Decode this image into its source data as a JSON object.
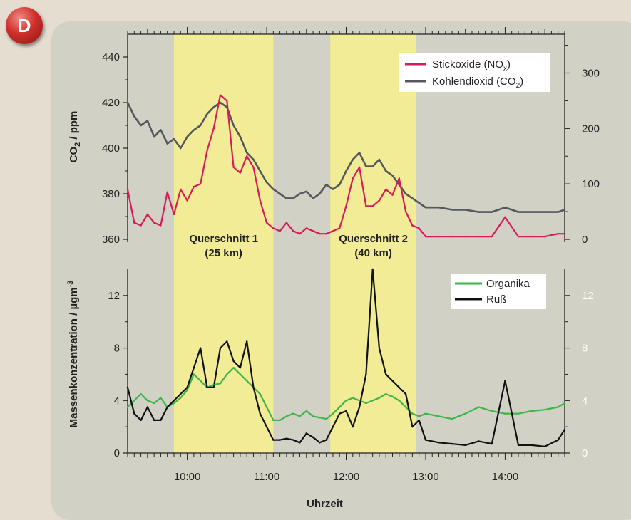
{
  "badge": {
    "letter": "D"
  },
  "chart_data": [
    {
      "type": "line",
      "xlabel": "",
      "ylabel": "CO2 / ppm",
      "ylim": [
        360,
        450
      ],
      "y2lim": [
        0,
        370
      ],
      "x_range": [
        "09:15",
        "14:45"
      ],
      "yticks": [
        360,
        380,
        400,
        420,
        440
      ],
      "y2ticks": [
        0,
        100,
        200,
        300
      ],
      "highlight_bands": [
        {
          "label": "Querschnitt 1",
          "sublabel": "(25 km)",
          "from": "09:50",
          "to": "11:05"
        },
        {
          "label": "Querschnitt 2",
          "sublabel": "(40 km)",
          "from": "11:48",
          "to": "12:53"
        }
      ],
      "legend_position": "top-right",
      "series": [
        {
          "name": "Stickoxide (NOx)",
          "legend_main": "Stickoxide (NO",
          "legend_sub": "x",
          "legend_end": ")",
          "color": "#d81b5c",
          "axis": "right",
          "x": [
            "09:15",
            "09:20",
            "09:25",
            "09:30",
            "09:35",
            "09:40",
            "09:45",
            "09:50",
            "09:55",
            "10:00",
            "10:05",
            "10:10",
            "10:15",
            "10:20",
            "10:25",
            "10:30",
            "10:35",
            "10:40",
            "10:45",
            "10:50",
            "10:55",
            "11:00",
            "11:05",
            "11:10",
            "11:15",
            "11:20",
            "11:25",
            "11:30",
            "11:35",
            "11:40",
            "11:45",
            "11:50",
            "11:55",
            "12:00",
            "12:05",
            "12:10",
            "12:15",
            "12:20",
            "12:25",
            "12:30",
            "12:35",
            "12:40",
            "12:45",
            "12:50",
            "12:55",
            "13:00",
            "13:10",
            "13:20",
            "13:30",
            "13:40",
            "13:50",
            "14:00",
            "14:10",
            "14:20",
            "14:30",
            "14:40",
            "14:45"
          ],
          "values": [
            90,
            30,
            25,
            45,
            30,
            25,
            85,
            45,
            90,
            70,
            95,
            100,
            160,
            200,
            260,
            250,
            130,
            120,
            150,
            130,
            70,
            30,
            20,
            15,
            30,
            15,
            10,
            20,
            15,
            10,
            10,
            15,
            20,
            60,
            110,
            130,
            60,
            60,
            70,
            90,
            80,
            110,
            50,
            25,
            20,
            5,
            5,
            5,
            5,
            5,
            5,
            40,
            5,
            5,
            5,
            10,
            10
          ]
        },
        {
          "name": "Kohlendioxid (CO2)",
          "legend_main": "Kohlendioxid (CO",
          "legend_sub": "2",
          "legend_end": ")",
          "color": "#55585c",
          "axis": "left",
          "x": [
            "09:15",
            "09:20",
            "09:25",
            "09:30",
            "09:35",
            "09:40",
            "09:45",
            "09:50",
            "09:55",
            "10:00",
            "10:05",
            "10:10",
            "10:15",
            "10:20",
            "10:25",
            "10:30",
            "10:35",
            "10:40",
            "10:45",
            "10:50",
            "10:55",
            "11:00",
            "11:05",
            "11:10",
            "11:15",
            "11:20",
            "11:25",
            "11:30",
            "11:35",
            "11:40",
            "11:45",
            "11:50",
            "11:55",
            "12:00",
            "12:05",
            "12:10",
            "12:15",
            "12:20",
            "12:25",
            "12:30",
            "12:35",
            "12:40",
            "12:45",
            "12:50",
            "12:55",
            "13:00",
            "13:10",
            "13:20",
            "13:30",
            "13:40",
            "13:50",
            "14:00",
            "14:10",
            "14:20",
            "14:30",
            "14:40",
            "14:45"
          ],
          "values": [
            420,
            414,
            410,
            412,
            405,
            408,
            402,
            404,
            400,
            405,
            408,
            410,
            415,
            418,
            420,
            418,
            410,
            405,
            398,
            395,
            390,
            385,
            382,
            380,
            378,
            378,
            380,
            381,
            378,
            380,
            384,
            382,
            384,
            390,
            395,
            398,
            392,
            392,
            395,
            390,
            388,
            384,
            380,
            378,
            376,
            374,
            374,
            373,
            373,
            372,
            372,
            374,
            372,
            372,
            372,
            372,
            373
          ]
        }
      ]
    },
    {
      "type": "line",
      "xlabel": "Uhrzeit",
      "ylabel": "Massenkonzentration / µgm-3",
      "ylim": [
        0,
        14
      ],
      "yticks": [
        0,
        4,
        8,
        12
      ],
      "xticks": [
        "10:00",
        "11:00",
        "12:00",
        "13:00",
        "14:00"
      ],
      "legend_position": "top-right",
      "series": [
        {
          "name": "Organika",
          "color": "#3db54a",
          "x": [
            "09:15",
            "09:20",
            "09:25",
            "09:30",
            "09:35",
            "09:40",
            "09:45",
            "09:50",
            "09:55",
            "10:00",
            "10:05",
            "10:10",
            "10:15",
            "10:20",
            "10:25",
            "10:30",
            "10:35",
            "10:40",
            "10:45",
            "10:50",
            "10:55",
            "11:00",
            "11:05",
            "11:10",
            "11:15",
            "11:20",
            "11:25",
            "11:30",
            "11:35",
            "11:40",
            "11:45",
            "11:50",
            "11:55",
            "12:00",
            "12:05",
            "12:10",
            "12:15",
            "12:20",
            "12:25",
            "12:30",
            "12:35",
            "12:40",
            "12:45",
            "12:50",
            "12:55",
            "13:00",
            "13:10",
            "13:20",
            "13:30",
            "13:40",
            "13:50",
            "14:00",
            "14:10",
            "14:20",
            "14:30",
            "14:40",
            "14:45"
          ],
          "values": [
            3.5,
            4.0,
            4.5,
            4.0,
            3.8,
            4.2,
            3.5,
            3.8,
            4.2,
            4.8,
            6.0,
            5.5,
            5.0,
            5.2,
            5.3,
            6.0,
            6.5,
            6.0,
            5.5,
            5.0,
            4.5,
            3.5,
            2.5,
            2.5,
            2.8,
            3.0,
            2.8,
            3.2,
            2.8,
            2.7,
            2.6,
            3.0,
            3.5,
            4.0,
            4.2,
            4.0,
            3.8,
            4.0,
            4.2,
            4.5,
            4.3,
            4.0,
            3.5,
            3.0,
            2.8,
            3.0,
            2.8,
            2.6,
            3.0,
            3.5,
            3.2,
            3.0,
            3.0,
            3.2,
            3.3,
            3.5,
            3.8
          ]
        },
        {
          "name": "Ruß",
          "color": "#111111",
          "x": [
            "09:15",
            "09:20",
            "09:25",
            "09:30",
            "09:35",
            "09:40",
            "09:45",
            "09:50",
            "09:55",
            "10:00",
            "10:05",
            "10:10",
            "10:15",
            "10:20",
            "10:25",
            "10:30",
            "10:35",
            "10:40",
            "10:45",
            "10:50",
            "10:55",
            "11:00",
            "11:05",
            "11:10",
            "11:15",
            "11:20",
            "11:25",
            "11:30",
            "11:35",
            "11:40",
            "11:45",
            "11:50",
            "11:55",
            "12:00",
            "12:05",
            "12:10",
            "12:15",
            "12:20",
            "12:25",
            "12:30",
            "12:35",
            "12:40",
            "12:45",
            "12:50",
            "12:55",
            "13:00",
            "13:10",
            "13:20",
            "13:30",
            "13:40",
            "13:50",
            "14:00",
            "14:10",
            "14:20",
            "14:30",
            "14:40",
            "14:45"
          ],
          "values": [
            5.0,
            3.0,
            2.5,
            3.5,
            2.5,
            2.5,
            3.5,
            4.0,
            4.5,
            5.0,
            6.5,
            8.0,
            5.0,
            5.0,
            8.0,
            8.5,
            7.0,
            6.5,
            8.5,
            5.0,
            3.0,
            2.0,
            1.0,
            1.0,
            1.1,
            1.0,
            0.8,
            1.5,
            1.2,
            0.8,
            1.0,
            2.0,
            3.0,
            3.2,
            2.0,
            3.5,
            6.0,
            14.0,
            8.0,
            6.0,
            5.5,
            5.0,
            4.5,
            2.0,
            2.5,
            1.0,
            0.8,
            0.7,
            0.6,
            0.9,
            0.7,
            5.5,
            0.6,
            0.6,
            0.5,
            1.0,
            1.8
          ]
        }
      ]
    }
  ]
}
